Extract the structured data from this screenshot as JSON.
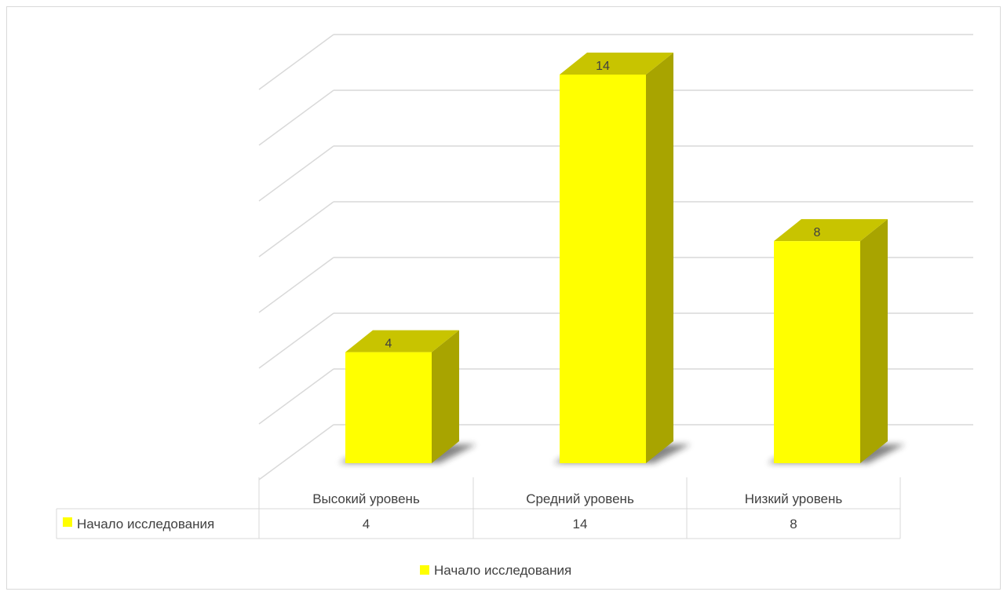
{
  "chart_data": {
    "type": "bar",
    "style": "3d-column-with-data-table",
    "title": "",
    "xlabel": "",
    "ylabel": "",
    "categories": [
      "Высокий уровень",
      "Средний уровень",
      "Низкий уровень"
    ],
    "series": [
      {
        "name": "Начало исследования",
        "values": [
          4,
          14,
          8
        ],
        "color": "#ffff00"
      }
    ],
    "ylim": [
      0,
      14
    ],
    "grid": true,
    "show_axis_tick_labels": false,
    "data_labels": true,
    "data_table": true,
    "legend": "bottom",
    "colors": {
      "bar_front": "#ffff00",
      "bar_top": "#c8c400",
      "bar_side": "#a8a400",
      "shadow": "#222222",
      "grid": "#d9d9d9",
      "text": "#404040"
    }
  }
}
